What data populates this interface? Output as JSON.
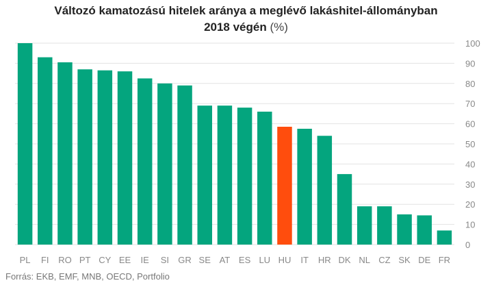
{
  "title_line1": "Változó kamatozású hitelek aránya a meglévő lakáshitel-állományban",
  "title_line2_bold": "2018 végén",
  "title_line2_unit": " (%)",
  "source": "Forrás: EKB, EMF, MNB, OECD, Portfolio",
  "colors": {
    "bar": "#04a57e",
    "highlight": "#ff4d0d",
    "grid": "#e3e3e3"
  },
  "chart_data": {
    "type": "bar",
    "title": "Változó kamatozású hitelek aránya a meglévő lakáshitel-állományban 2018 végén (%)",
    "categories": [
      "PL",
      "FI",
      "RO",
      "PT",
      "CY",
      "EE",
      "IE",
      "SI",
      "GR",
      "SE",
      "AT",
      "ES",
      "LU",
      "HU",
      "IT",
      "HR",
      "DK",
      "NL",
      "CZ",
      "SK",
      "DE",
      "FR"
    ],
    "values": [
      100,
      93,
      90.5,
      87,
      86.5,
      86,
      82.5,
      80,
      79,
      69,
      69,
      68,
      66,
      58.5,
      57.5,
      54,
      35,
      19,
      19,
      15,
      14.5,
      7
    ],
    "highlight": "HU",
    "ylim": [
      0,
      100
    ],
    "yticks": [
      0,
      10,
      20,
      30,
      40,
      50,
      60,
      70,
      80,
      90,
      100
    ],
    "axis_side": "right",
    "grid": true,
    "xlabel": "",
    "ylabel": ""
  }
}
